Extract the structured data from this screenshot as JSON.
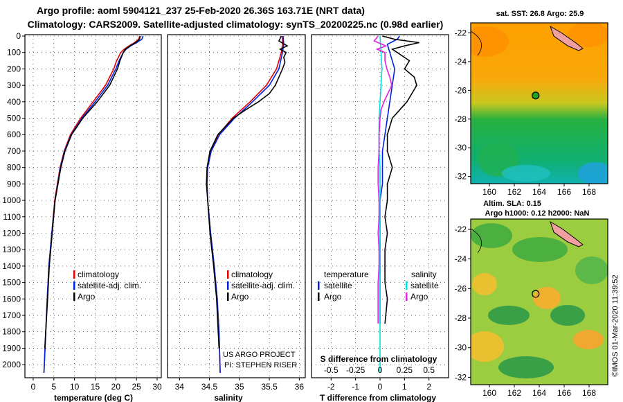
{
  "title_line1": "Argo profile: aoml 5904121_237 25-Feb-2020 26.36S 163.71E (NRT data)",
  "title_line2": "Climatology: CARS2009. Satellite-adjusted climatology: synTS_20200225.nc (0.98d earlier)",
  "sst_title": "sat. SST: 26.8 Argo: 25.9",
  "sla_title1": "Altim. SLA: 0.15",
  "sla_title2": "Argo h1000: 0.12 h2000: NaN",
  "imos_stamp": "©IMOS 01-Mar-2020 11:39:52",
  "project_line1": "US ARGO PROJECT",
  "project_line2": "PI: STEPHEN RISER",
  "colors": {
    "climatology": "#e00000",
    "satellite_adj": "#0020e0",
    "argo": "#000000",
    "sat_salinity": "#00e0e0",
    "argo_salinity_diff": "#e020e0"
  },
  "chart_data": [
    {
      "type": "line",
      "name": "temperature",
      "xlabel": "temperature (deg C)",
      "ylabel": "",
      "xlim": [
        -2,
        31
      ],
      "ylim": [
        2050,
        0
      ],
      "xticks": [
        "0",
        "5",
        "10",
        "15",
        "20",
        "25",
        "30"
      ],
      "yticks": [
        "0",
        "100",
        "200",
        "300",
        "400",
        "500",
        "600",
        "700",
        "800",
        "900",
        "1000",
        "1100",
        "1200",
        "1300",
        "1400",
        "1500",
        "1600",
        "1700",
        "1800",
        "1900",
        "2000"
      ],
      "grid": true,
      "legend": {
        "position": "bottom-right",
        "entries": [
          "climatology",
          "satellite-adj. clim.",
          "Argo"
        ]
      },
      "series": [
        {
          "name": "climatology",
          "depth": [
            0,
            20,
            40,
            60,
            80,
            100,
            150,
            200,
            300,
            400,
            500,
            600,
            700,
            800,
            1000,
            1200,
            1400,
            1600,
            2050
          ],
          "values": [
            25.8,
            25.5,
            24.5,
            23.2,
            22.0,
            21.2,
            20.2,
            19.5,
            17.5,
            14.5,
            11.5,
            9.0,
            7.5,
            6.5,
            5.2,
            4.5,
            3.8,
            3.4,
            2.6
          ]
        },
        {
          "name": "satellite-adj. clim.",
          "depth": [
            0,
            20,
            40,
            60,
            80,
            100,
            150,
            200,
            300,
            400,
            500,
            600,
            700,
            800,
            1000,
            1200,
            1400,
            1600,
            2050
          ],
          "values": [
            26.6,
            26.3,
            25.0,
            23.6,
            22.5,
            21.8,
            20.8,
            20.0,
            18.0,
            15.0,
            11.8,
            9.2,
            7.6,
            6.6,
            5.3,
            4.5,
            3.8,
            3.4,
            2.6
          ]
        },
        {
          "name": "Argo",
          "depth": [
            0,
            20,
            40,
            60,
            80,
            100,
            150,
            200,
            300,
            400,
            500,
            600,
            700,
            800,
            1000,
            1200,
            1400,
            1600,
            1900
          ],
          "values": [
            25.9,
            25.7,
            24.8,
            23.4,
            22.3,
            21.8,
            21.0,
            20.4,
            18.5,
            15.5,
            12.0,
            9.3,
            7.7,
            6.7,
            5.3,
            4.6,
            3.9,
            3.5,
            2.8
          ]
        }
      ]
    },
    {
      "type": "line",
      "name": "salinity",
      "xlabel": "salinity",
      "ylabel": "",
      "xlim": [
        33.8,
        36.1
      ],
      "ylim": [
        2050,
        0
      ],
      "xticks": [
        "34",
        "34.5",
        "35",
        "35.5",
        "36"
      ],
      "grid": true,
      "legend": {
        "position": "bottom-right",
        "entries": [
          "climatology",
          "satellite-adj. clim.",
          "Argo"
        ]
      },
      "series": [
        {
          "name": "climatology",
          "depth": [
            0,
            50,
            100,
            200,
            300,
            400,
            500,
            600,
            700,
            800,
            900,
            1000,
            1200,
            1400,
            1600,
            1800,
            2050
          ],
          "values": [
            35.72,
            35.72,
            35.7,
            35.62,
            35.45,
            35.18,
            34.88,
            34.65,
            34.52,
            34.47,
            34.46,
            34.47,
            34.52,
            34.58,
            34.63,
            34.66,
            34.68
          ]
        },
        {
          "name": "satellite-adj. clim.",
          "depth": [
            0,
            50,
            100,
            200,
            300,
            400,
            500,
            600,
            700,
            800,
            900,
            1000,
            1200,
            1400,
            1600,
            1800,
            2050
          ],
          "values": [
            35.73,
            35.74,
            35.72,
            35.66,
            35.5,
            35.22,
            34.92,
            34.67,
            34.53,
            34.47,
            34.46,
            34.47,
            34.52,
            34.58,
            34.63,
            34.66,
            34.68
          ]
        },
        {
          "name": "Argo",
          "depth": [
            0,
            30,
            60,
            80,
            100,
            130,
            160,
            200,
            250,
            300,
            350,
            400,
            450,
            500,
            600,
            700,
            800,
            900,
            1000,
            1200,
            1400,
            1600,
            1900
          ],
          "values": [
            35.7,
            35.66,
            35.8,
            35.68,
            35.78,
            35.74,
            35.76,
            35.72,
            35.66,
            35.6,
            35.5,
            35.32,
            35.1,
            34.9,
            34.64,
            34.51,
            34.46,
            34.45,
            34.47,
            34.51,
            34.57,
            34.62,
            34.66
          ]
        }
      ]
    },
    {
      "type": "line",
      "name": "difference",
      "xlabel": "T difference from climatology",
      "x2label": "S difference from climatology",
      "xlim": [
        -2.8,
        2.8
      ],
      "x2lim": [
        -0.7,
        0.7
      ],
      "ylim": [
        2050,
        0
      ],
      "xticks": [
        "-2",
        "-1",
        "0",
        "1",
        "2"
      ],
      "x2ticks": [
        "-0.5",
        "-0.25",
        "0",
        "0.25",
        "0.5"
      ],
      "grid": true,
      "legend": {
        "position": "bottom",
        "groups": [
          {
            "title": "temperature",
            "entries": [
              "satellite",
              "Argo"
            ]
          },
          {
            "title": "salinity",
            "entries": [
              "satellite",
              "Argo"
            ]
          }
        ]
      },
      "series": [
        {
          "name": "temperature satellite",
          "depth": [
            0,
            20,
            50,
            100,
            200,
            300,
            400,
            500,
            600,
            700,
            800,
            900,
            1000,
            1200,
            1400,
            1600,
            1750
          ],
          "values": [
            0.8,
            0.7,
            0.3,
            0.4,
            0.6,
            0.5,
            0.4,
            0.3,
            0.2,
            0.1,
            0.1,
            0.1,
            0.0,
            0.0,
            0.0,
            0.0,
            0.0
          ]
        },
        {
          "name": "temperature Argo",
          "depth": [
            0,
            20,
            40,
            60,
            80,
            100,
            150,
            200,
            250,
            300,
            350,
            400,
            450,
            500,
            600,
            700,
            800,
            900,
            1000,
            1100,
            1200,
            1300,
            1400,
            1500,
            1600,
            1750
          ],
          "values": [
            0.1,
            0.6,
            1.6,
            1.0,
            0.5,
            0.7,
            1.2,
            1.0,
            1.4,
            1.5,
            1.3,
            1.1,
            0.8,
            0.5,
            0.3,
            0.3,
            0.5,
            0.3,
            0.3,
            0.2,
            0.3,
            0.2,
            0.2,
            0.2,
            0.3,
            0.2
          ]
        },
        {
          "name": "salinity satellite",
          "depth": [
            0,
            100,
            200,
            300,
            400,
            500,
            600,
            700,
            800,
            1000,
            1200,
            1400,
            1600,
            1800,
            2050
          ],
          "values": [
            0.0,
            0.01,
            0.02,
            0.01,
            0.0,
            -0.01,
            -0.01,
            -0.01,
            0.0,
            0.0,
            0.0,
            0.0,
            0.0,
            0.0,
            0.0
          ]
        },
        {
          "name": "salinity Argo",
          "depth": [
            0,
            30,
            60,
            80,
            100,
            150,
            200,
            250,
            300,
            350,
            400,
            450,
            500,
            600,
            700,
            800,
            900,
            1000,
            1100,
            1200,
            1300,
            1400,
            1500,
            1600,
            1750
          ],
          "values": [
            -0.02,
            -0.06,
            0.06,
            -0.03,
            0.05,
            0.05,
            0.07,
            0.1,
            0.12,
            0.08,
            0.04,
            0.01,
            0.0,
            -0.01,
            -0.01,
            -0.02,
            -0.02,
            -0.01,
            -0.01,
            -0.02,
            -0.01,
            -0.01,
            -0.02,
            -0.02,
            -0.02
          ]
        }
      ]
    },
    {
      "type": "heatmap",
      "name": "satellite SST map",
      "xticks": [
        "160",
        "162",
        "164",
        "166",
        "168"
      ],
      "yticks": [
        "-22",
        "-24",
        "-26",
        "-28",
        "-30",
        "-32"
      ],
      "xlim": [
        158.5,
        169.5
      ],
      "ylim": [
        -32.5,
        -21.3
      ],
      "argo_position": {
        "lon": 163.71,
        "lat": -26.36
      }
    },
    {
      "type": "heatmap",
      "name": "altimetry SLA map",
      "xticks": [
        "160",
        "162",
        "164",
        "166",
        "168"
      ],
      "yticks": [
        "-22",
        "-24",
        "-26",
        "-28",
        "-30",
        "-32"
      ],
      "xlim": [
        158.5,
        169.5
      ],
      "ylim": [
        -32.5,
        -21.3
      ],
      "argo_position": {
        "lon": 163.71,
        "lat": -26.36
      }
    }
  ]
}
